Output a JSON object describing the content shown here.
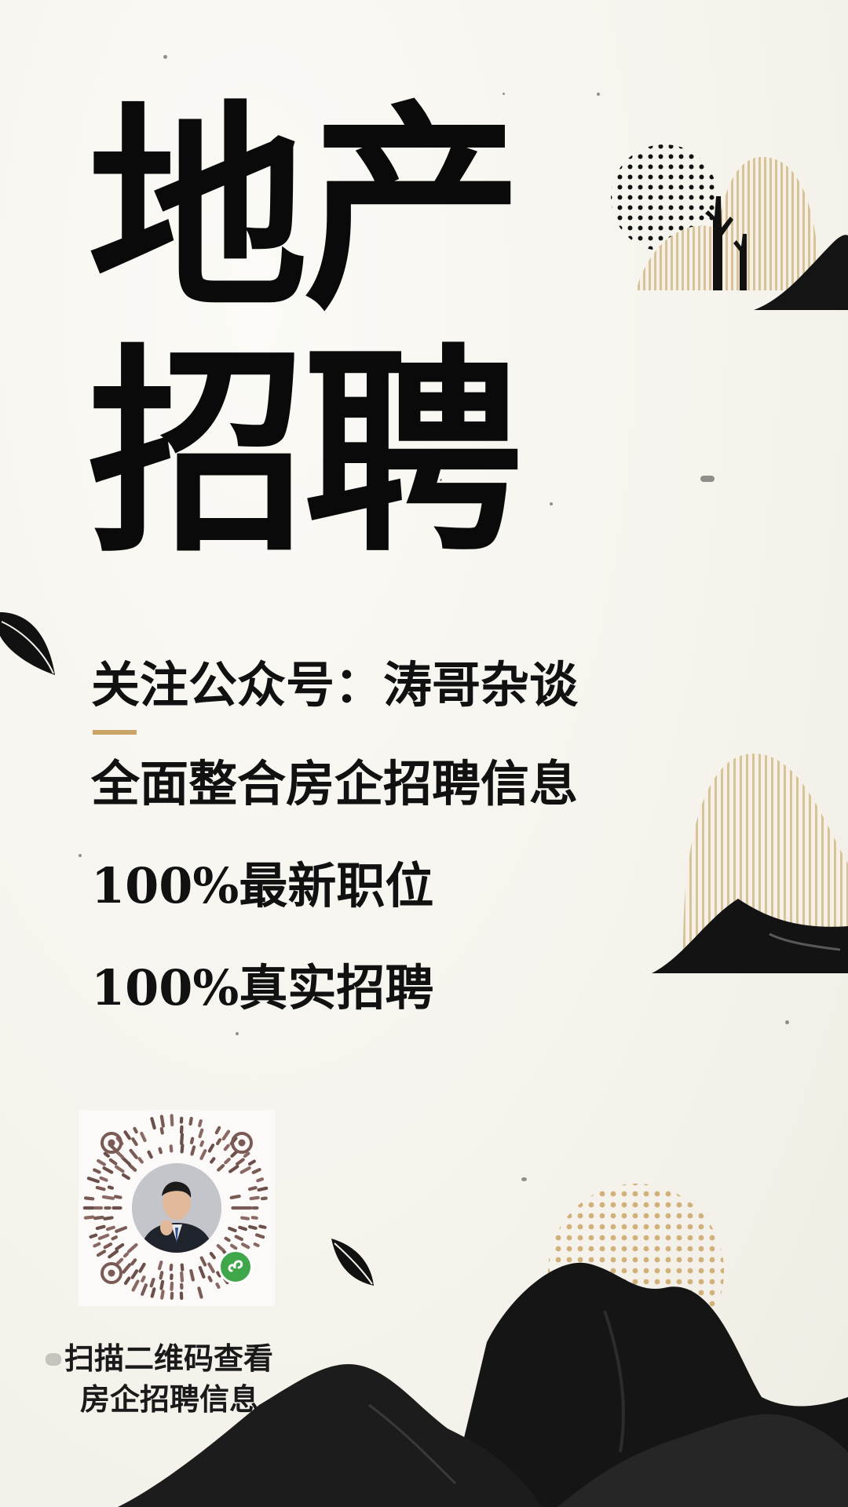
{
  "poster": {
    "title_line_1": "地产",
    "title_line_2": "招聘",
    "follow_text": "关注公众号：涛哥杂谈",
    "integrate_text": "全面整合房企招聘信息",
    "latest_text": "100%最新职位",
    "real_text": "100%真实招聘",
    "caption_line_1": "扫描二维码查看",
    "caption_line_2": "房企招聘信息"
  },
  "colors": {
    "background": "#f7f5ef",
    "ink": "#0a0a0a",
    "gold": "#c9a466",
    "beige": "#d8c7a1"
  },
  "icons": [
    "mountain-illustration",
    "leaf-icon",
    "tree-illustration",
    "dot-sun",
    "mini-program-qr-code",
    "mini-program-badge-icon"
  ]
}
